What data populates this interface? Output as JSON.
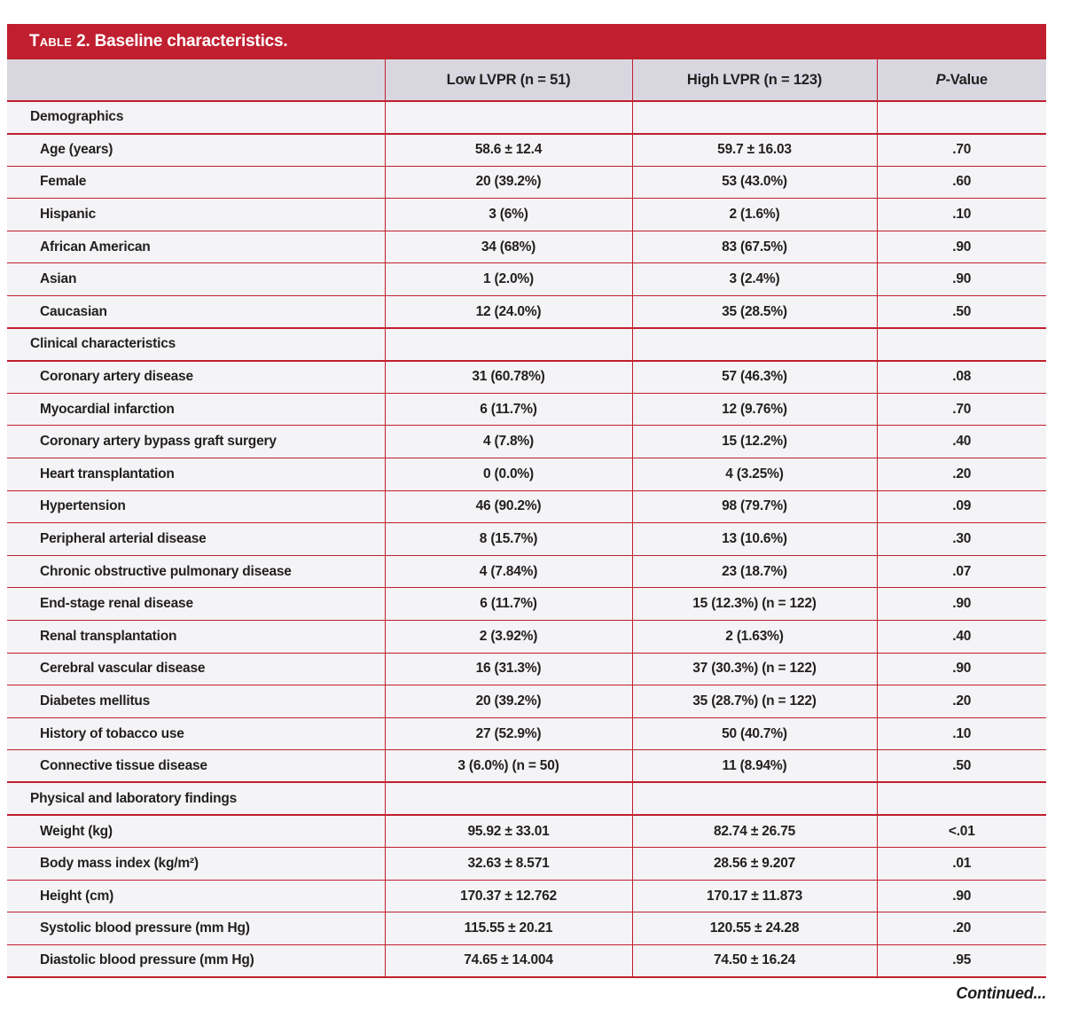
{
  "colors": {
    "accent_red": "#c01f2f",
    "header_bg": "#d8d7e0",
    "row_bg": "#f4f3f5",
    "text": "#231f20"
  },
  "table": {
    "title_prefix": "Table",
    "title_rest": " 2. Baseline characteristics.",
    "columns": {
      "low": "Low LVPR (n = 51)",
      "high": "High LVPR (n = 123)"
    },
    "p_header": {
      "italic": "P",
      "rest": "-Value"
    },
    "rows": [
      {
        "type": "section",
        "label": "Demographics"
      },
      {
        "type": "data",
        "label": "Age (years)",
        "low": "58.6 ± 12.4",
        "high": "59.7 ± 16.03",
        "p": ".70"
      },
      {
        "type": "data",
        "label": "Female",
        "low": "20 (39.2%)",
        "high": "53 (43.0%)",
        "p": ".60"
      },
      {
        "type": "data",
        "label": "Hispanic",
        "low": "3 (6%)",
        "high": "2 (1.6%)",
        "p": ".10"
      },
      {
        "type": "data",
        "label": "African American",
        "low": "34 (68%)",
        "high": "83 (67.5%)",
        "p": ".90"
      },
      {
        "type": "data",
        "label": "Asian",
        "low": "1 (2.0%)",
        "high": "3 (2.4%)",
        "p": ".90"
      },
      {
        "type": "data",
        "label": "Caucasian",
        "low": "12 (24.0%)",
        "high": "35 (28.5%)",
        "p": ".50"
      },
      {
        "type": "section",
        "label": "Clinical characteristics"
      },
      {
        "type": "data",
        "label": "Coronary artery disease",
        "low": "31 (60.78%)",
        "high": "57 (46.3%)",
        "p": ".08"
      },
      {
        "type": "data",
        "label": "Myocardial infarction",
        "low": "6 (11.7%)",
        "high": "12 (9.76%)",
        "p": ".70"
      },
      {
        "type": "data",
        "label": "Coronary artery bypass graft surgery",
        "low": "4 (7.8%)",
        "high": "15 (12.2%)",
        "p": ".40"
      },
      {
        "type": "data",
        "label": "Heart transplantation",
        "low": "0 (0.0%)",
        "high": "4 (3.25%)",
        "p": ".20"
      },
      {
        "type": "data",
        "label": "Hypertension",
        "low": "46 (90.2%)",
        "high": "98 (79.7%)",
        "p": ".09"
      },
      {
        "type": "data",
        "label": "Peripheral arterial disease",
        "low": "8 (15.7%)",
        "high": "13 (10.6%)",
        "p": ".30"
      },
      {
        "type": "data",
        "label": "Chronic obstructive pulmonary disease",
        "low": "4 (7.84%)",
        "high": "23 (18.7%)",
        "p": ".07"
      },
      {
        "type": "data",
        "label": "End-stage renal disease",
        "low": "6 (11.7%)",
        "high": "15 (12.3%) (n = 122)",
        "p": ".90"
      },
      {
        "type": "data",
        "label": "Renal transplantation",
        "low": "2 (3.92%)",
        "high": "2 (1.63%)",
        "p": ".40"
      },
      {
        "type": "data",
        "label": "Cerebral vascular disease",
        "low": "16 (31.3%)",
        "high": "37 (30.3%) (n = 122)",
        "p": ".90"
      },
      {
        "type": "data",
        "label": "Diabetes mellitus",
        "low": "20 (39.2%)",
        "high": "35 (28.7%) (n = 122)",
        "p": ".20"
      },
      {
        "type": "data",
        "label": "History of tobacco use",
        "low": "27 (52.9%)",
        "high": "50 (40.7%)",
        "p": ".10"
      },
      {
        "type": "data",
        "label": "Connective tissue disease",
        "low": "3 (6.0%) (n = 50)",
        "high": "11 (8.94%)",
        "p": ".50"
      },
      {
        "type": "section",
        "label": "Physical and laboratory findings"
      },
      {
        "type": "data",
        "label": "Weight (kg)",
        "low": "95.92 ± 33.01",
        "high": "82.74 ± 26.75",
        "p": "<.01"
      },
      {
        "type": "data",
        "label": "Body mass index (kg/m²)",
        "low": "32.63 ± 8.571",
        "high": "28.56 ± 9.207",
        "p": ".01"
      },
      {
        "type": "data",
        "label": "Height (cm)",
        "low": "170.37 ± 12.762",
        "high": "170.17 ± 11.873",
        "p": ".90"
      },
      {
        "type": "data",
        "label": "Systolic blood pressure (mm Hg)",
        "low": "115.55 ± 20.21",
        "high": "120.55 ± 24.28",
        "p": ".20"
      },
      {
        "type": "data",
        "label": "Diastolic blood pressure (mm Hg)",
        "low": "74.65 ± 14.004",
        "high": "74.50 ± 16.24",
        "p": ".95"
      }
    ]
  },
  "footer": {
    "continued": "Continued..."
  }
}
